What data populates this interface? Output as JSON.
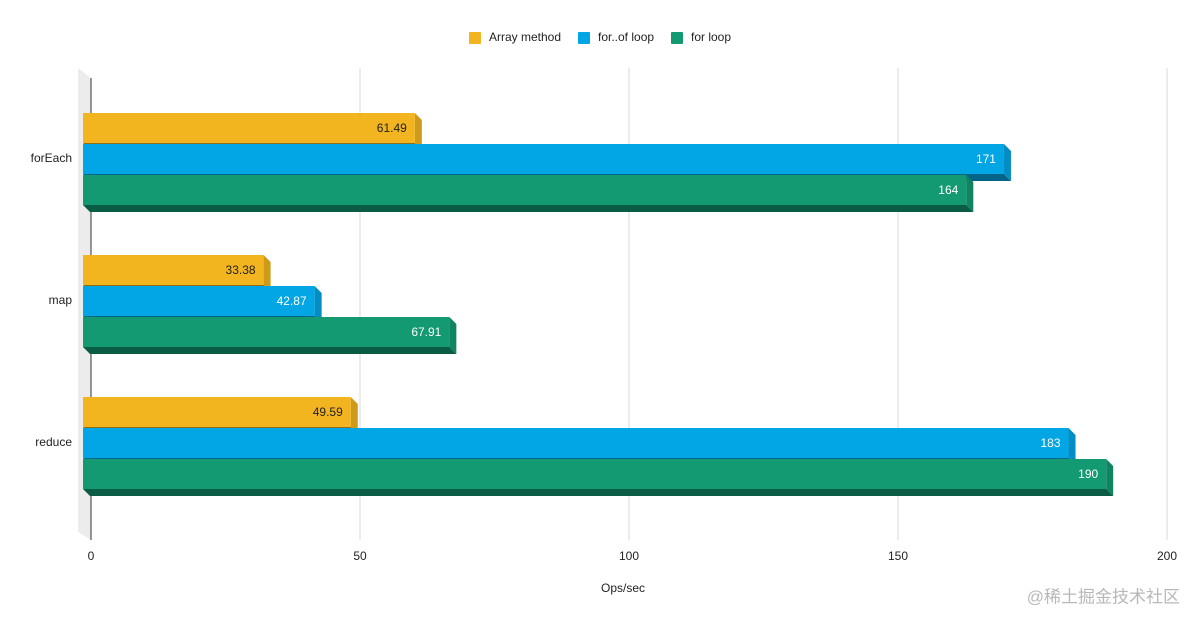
{
  "chart_data": {
    "type": "hbar",
    "categories": [
      "forEach",
      "map",
      "reduce"
    ],
    "series": [
      {
        "name": "Array method",
        "color": "#f2b51f",
        "values": [
          61.49,
          33.38,
          49.59
        ],
        "value_label_color": "#222222"
      },
      {
        "name": "for..of loop",
        "color": "#03a6e4",
        "values": [
          171,
          42.87,
          183
        ],
        "value_label_color": "#ffffff"
      },
      {
        "name": "for loop",
        "color": "#139a72",
        "values": [
          164,
          67.91,
          190
        ],
        "value_label_color": "#ffffff"
      }
    ],
    "x_label": "Ops/sec",
    "xlim": [
      0,
      200
    ],
    "xticks": [
      0,
      50,
      100,
      150,
      200
    ],
    "grid": true,
    "legend": "top"
  },
  "watermark": "@稀土掘金技术社区"
}
